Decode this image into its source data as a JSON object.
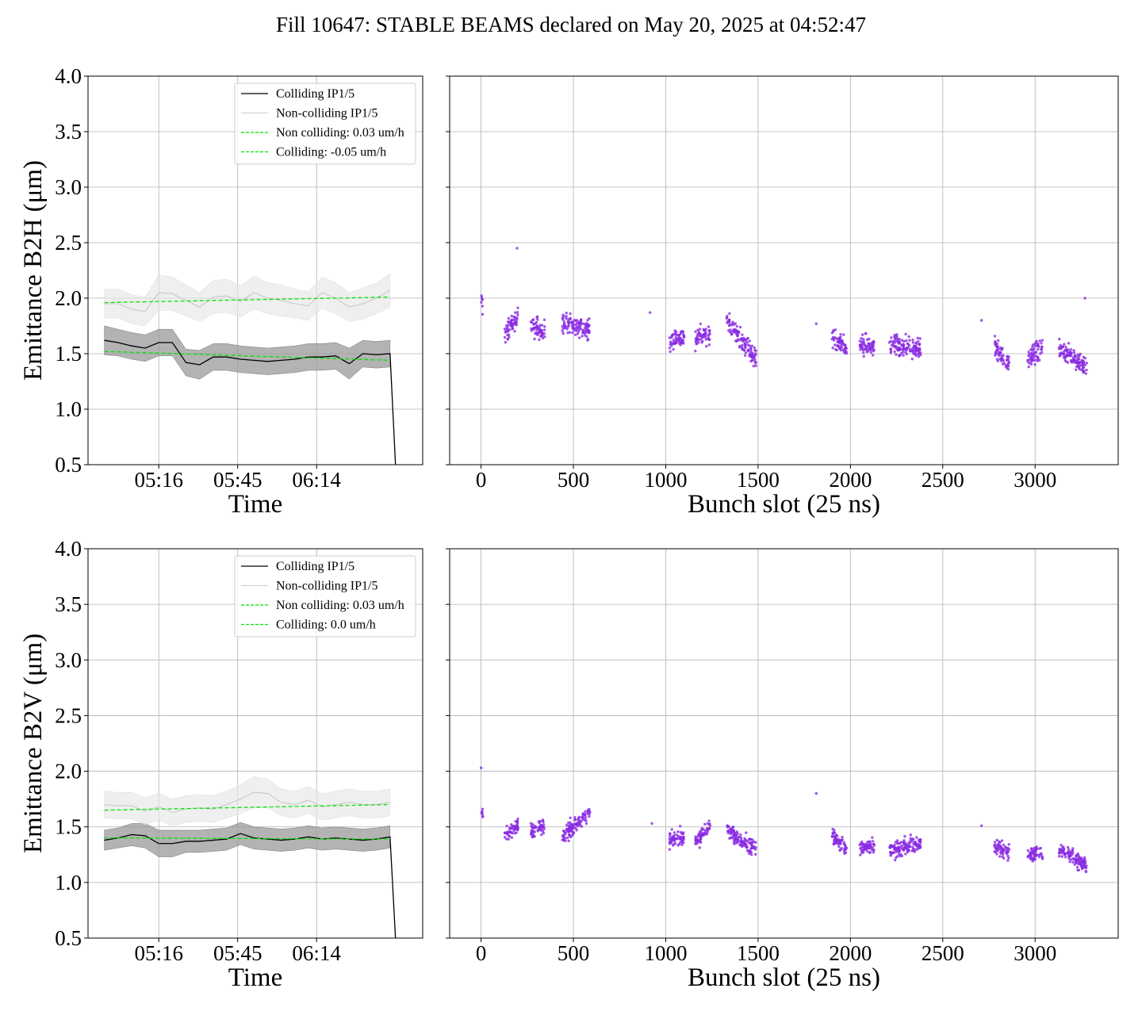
{
  "figure": {
    "suptitle": "Fill 10647: STABLE BEAMS declared on May 20, 2025 at 04:52:47"
  },
  "chart_data": [
    {
      "type": "line",
      "panel": "B2H-time",
      "ylabel": "Emittance B2H (μm)",
      "xlabel": "Time",
      "ylim": [
        0.5,
        4.0
      ],
      "yticks": [
        "0.5",
        "1.0",
        "1.5",
        "2.0",
        "2.5",
        "3.0",
        "3.5",
        "4.0"
      ],
      "xticks": [
        "05:16",
        "05:45",
        "06:14"
      ],
      "grid": true,
      "legend_position": "top-right",
      "legend": [
        {
          "label": "Colliding IP1/5",
          "color": "#000000",
          "style": "solid"
        },
        {
          "label": "Non-colliding IP1/5",
          "color": "#d3d3d3",
          "style": "solid"
        },
        {
          "label": "Non colliding: 0.03 um/h",
          "color": "#00e600",
          "style": "dashed"
        },
        {
          "label": "Colliding: -0.05 um/h",
          "color": "#00e600",
          "style": "dashed"
        }
      ],
      "x_minutes_since_start": [
        0,
        5,
        10,
        15,
        20,
        25,
        30,
        35,
        40,
        45,
        50,
        55,
        60,
        65,
        70,
        75,
        80,
        85,
        90,
        95,
        100,
        105
      ],
      "series": [
        {
          "name": "Colliding IP1/5",
          "values": [
            1.62,
            1.6,
            1.57,
            1.55,
            1.6,
            1.6,
            1.42,
            1.4,
            1.47,
            1.47,
            1.45,
            1.44,
            1.43,
            1.44,
            1.45,
            1.47,
            1.47,
            1.48,
            1.41,
            1.5,
            1.49,
            1.5
          ],
          "band": [
            0.13,
            0.12,
            0.12,
            0.12,
            0.12,
            0.12,
            0.12,
            0.13,
            0.12,
            0.12,
            0.12,
            0.12,
            0.12,
            0.12,
            0.12,
            0.12,
            0.12,
            0.12,
            0.14,
            0.12,
            0.12,
            0.12
          ],
          "color": "#000000"
        },
        {
          "name": "Non-colliding IP1/5",
          "values": [
            1.95,
            1.95,
            1.9,
            1.88,
            2.05,
            2.04,
            1.98,
            1.92,
            2.01,
            2.02,
            1.97,
            2.05,
            2.0,
            1.98,
            1.95,
            1.93,
            2.05,
            2.0,
            1.92,
            1.95,
            2.0,
            2.07
          ],
          "band": [
            0.13,
            0.13,
            0.13,
            0.13,
            0.16,
            0.15,
            0.14,
            0.13,
            0.15,
            0.15,
            0.14,
            0.15,
            0.14,
            0.14,
            0.13,
            0.13,
            0.14,
            0.14,
            0.13,
            0.14,
            0.14,
            0.15
          ],
          "color": "#d3d3d3"
        },
        {
          "name": "Non colliding: 0.03 um/h",
          "line_start": 1.96,
          "line_end": 2.01,
          "color": "#00e600",
          "style": "dashed"
        },
        {
          "name": "Colliding: -0.05 um/h",
          "line_start": 1.52,
          "line_end": 1.44,
          "color": "#00e600",
          "style": "dashed"
        }
      ],
      "tail_drop_to": 0.5
    },
    {
      "type": "scatter",
      "panel": "B2H-bunch",
      "xlabel": "Bunch slot (25 ns)",
      "ylim": [
        0.5,
        4.0
      ],
      "xlim": [
        -170,
        3450
      ],
      "xticks": [
        "0",
        "500",
        "1000",
        "1500",
        "2000",
        "2500",
        "3000"
      ],
      "grid": true,
      "color": "#8a2be2",
      "trains": [
        {
          "x0": 0,
          "x1": 10,
          "y0": 1.98,
          "y1": 1.92
        },
        {
          "x0": 125,
          "x1": 200,
          "y0": 1.65,
          "y1": 1.85
        },
        {
          "x0": 270,
          "x1": 345,
          "y0": 1.75,
          "y1": 1.7
        },
        {
          "x0": 440,
          "x1": 590,
          "y0": 1.78,
          "y1": 1.72
        },
        {
          "x0": 1020,
          "x1": 1100,
          "y0": 1.62,
          "y1": 1.65
        },
        {
          "x0": 1160,
          "x1": 1240,
          "y0": 1.62,
          "y1": 1.7
        },
        {
          "x0": 1330,
          "x1": 1490,
          "y0": 1.8,
          "y1": 1.45
        },
        {
          "x0": 1900,
          "x1": 1980,
          "y0": 1.62,
          "y1": 1.55
        },
        {
          "x0": 2050,
          "x1": 2130,
          "y0": 1.58,
          "y1": 1.55
        },
        {
          "x0": 2210,
          "x1": 2380,
          "y0": 1.58,
          "y1": 1.55
        },
        {
          "x0": 2780,
          "x1": 2860,
          "y0": 1.55,
          "y1": 1.42
        },
        {
          "x0": 2960,
          "x1": 3040,
          "y0": 1.47,
          "y1": 1.55
        },
        {
          "x0": 3130,
          "x1": 3280,
          "y0": 1.55,
          "y1": 1.38
        }
      ],
      "singles": [
        [
          915,
          1.87
        ],
        [
          1815,
          1.77
        ],
        [
          2710,
          1.8
        ],
        [
          195,
          2.45
        ],
        [
          3270,
          2.0
        ]
      ],
      "spread": 0.09
    },
    {
      "type": "line",
      "panel": "B2V-time",
      "ylabel": "Emittance B2V (μm)",
      "xlabel": "Time",
      "ylim": [
        0.5,
        4.0
      ],
      "yticks": [
        "0.5",
        "1.0",
        "1.5",
        "2.0",
        "2.5",
        "3.0",
        "3.5",
        "4.0"
      ],
      "xticks": [
        "05:16",
        "05:45",
        "06:14"
      ],
      "grid": true,
      "legend_position": "top-right",
      "legend": [
        {
          "label": "Colliding IP1/5",
          "color": "#000000",
          "style": "solid"
        },
        {
          "label": "Non-colliding IP1/5",
          "color": "#d3d3d3",
          "style": "solid"
        },
        {
          "label": "Non colliding: 0.03 um/h",
          "color": "#00e600",
          "style": "dashed"
        },
        {
          "label": "Colliding: 0.0 um/h",
          "color": "#00e600",
          "style": "dashed"
        }
      ],
      "x_minutes_since_start": [
        0,
        5,
        10,
        15,
        20,
        25,
        30,
        35,
        40,
        45,
        50,
        55,
        60,
        65,
        70,
        75,
        80,
        85,
        90,
        95,
        100,
        105
      ],
      "series": [
        {
          "name": "Colliding IP1/5",
          "values": [
            1.38,
            1.4,
            1.43,
            1.42,
            1.35,
            1.35,
            1.37,
            1.37,
            1.38,
            1.39,
            1.44,
            1.4,
            1.39,
            1.38,
            1.39,
            1.41,
            1.39,
            1.4,
            1.39,
            1.38,
            1.39,
            1.41
          ],
          "band": [
            0.09,
            0.09,
            0.1,
            0.11,
            0.12,
            0.12,
            0.1,
            0.1,
            0.1,
            0.1,
            0.1,
            0.1,
            0.1,
            0.1,
            0.1,
            0.1,
            0.1,
            0.1,
            0.1,
            0.1,
            0.1,
            0.1
          ],
          "color": "#000000"
        },
        {
          "name": "Non-colliding IP1/5",
          "values": [
            1.7,
            1.69,
            1.69,
            1.64,
            1.68,
            1.63,
            1.66,
            1.67,
            1.66,
            1.7,
            1.75,
            1.81,
            1.8,
            1.72,
            1.7,
            1.74,
            1.68,
            1.7,
            1.72,
            1.7,
            1.7,
            1.72
          ],
          "band": [
            0.12,
            0.12,
            0.12,
            0.12,
            0.12,
            0.12,
            0.12,
            0.12,
            0.12,
            0.12,
            0.13,
            0.14,
            0.13,
            0.12,
            0.12,
            0.12,
            0.12,
            0.12,
            0.12,
            0.12,
            0.12,
            0.12
          ],
          "color": "#d3d3d3"
        },
        {
          "name": "Non colliding: 0.03 um/h",
          "line_start": 1.65,
          "line_end": 1.7,
          "color": "#00e600",
          "style": "dashed"
        },
        {
          "name": "Colliding: 0.0 um/h",
          "line_start": 1.4,
          "line_end": 1.39,
          "color": "#00e600",
          "style": "dashed"
        }
      ],
      "tail_drop_to": 0.5
    },
    {
      "type": "scatter",
      "panel": "B2V-bunch",
      "xlabel": "Bunch slot (25 ns)",
      "ylim": [
        0.5,
        4.0
      ],
      "xlim": [
        -170,
        3450
      ],
      "xticks": [
        "0",
        "500",
        "1000",
        "1500",
        "2000",
        "2500",
        "3000"
      ],
      "grid": true,
      "color": "#8a2be2",
      "trains": [
        {
          "x0": 0,
          "x1": 10,
          "y0": 1.65,
          "y1": 1.6
        },
        {
          "x0": 125,
          "x1": 200,
          "y0": 1.42,
          "y1": 1.52
        },
        {
          "x0": 270,
          "x1": 345,
          "y0": 1.45,
          "y1": 1.52
        },
        {
          "x0": 440,
          "x1": 590,
          "y0": 1.42,
          "y1": 1.62
        },
        {
          "x0": 1020,
          "x1": 1100,
          "y0": 1.38,
          "y1": 1.42
        },
        {
          "x0": 1160,
          "x1": 1240,
          "y0": 1.36,
          "y1": 1.5
        },
        {
          "x0": 1330,
          "x1": 1490,
          "y0": 1.48,
          "y1": 1.3
        },
        {
          "x0": 1900,
          "x1": 1980,
          "y0": 1.42,
          "y1": 1.3
        },
        {
          "x0": 2050,
          "x1": 2130,
          "y0": 1.3,
          "y1": 1.32
        },
        {
          "x0": 2210,
          "x1": 2380,
          "y0": 1.28,
          "y1": 1.35
        },
        {
          "x0": 2780,
          "x1": 2860,
          "y0": 1.33,
          "y1": 1.28
        },
        {
          "x0": 2960,
          "x1": 3040,
          "y0": 1.25,
          "y1": 1.25
        },
        {
          "x0": 3130,
          "x1": 3280,
          "y0": 1.3,
          "y1": 1.15
        }
      ],
      "singles": [
        [
          0,
          2.03
        ],
        [
          925,
          1.53
        ],
        [
          1815,
          1.8
        ],
        [
          2710,
          1.51
        ]
      ],
      "spread": 0.07
    }
  ]
}
